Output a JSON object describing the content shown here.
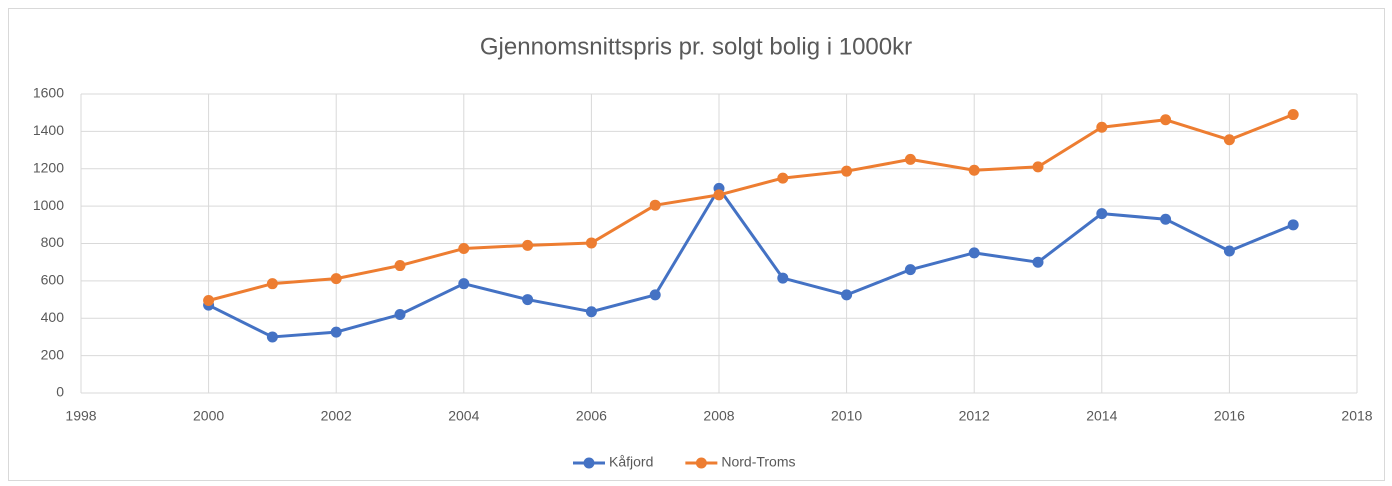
{
  "chart_data": {
    "type": "line",
    "title": "Gjennomsnittspris pr. solgt bolig i 1000kr",
    "x": [
      2000,
      2001,
      2002,
      2003,
      2004,
      2005,
      2006,
      2007,
      2008,
      2009,
      2010,
      2011,
      2012,
      2013,
      2014,
      2015,
      2016,
      2017
    ],
    "series": [
      {
        "name": "Kåfjord",
        "color": "#4472c4",
        "values": [
          470,
          300,
          326,
          420,
          585,
          500,
          435,
          525,
          1095,
          615,
          525,
          660,
          750,
          700,
          960,
          930,
          760,
          900
        ]
      },
      {
        "name": "Nord-Troms",
        "color": "#ed7d31",
        "values": [
          495,
          585,
          612,
          682,
          773,
          790,
          803,
          1005,
          1060,
          1150,
          1187,
          1250,
          1192,
          1210,
          1422,
          1462,
          1355,
          1490
        ]
      }
    ],
    "xlim": [
      1998,
      2018
    ],
    "xticks": [
      1998,
      2000,
      2002,
      2004,
      2006,
      2008,
      2010,
      2012,
      2014,
      2016,
      2018
    ],
    "ylim": [
      0,
      1600
    ],
    "yticks": [
      0,
      200,
      400,
      600,
      800,
      1000,
      1200,
      1400,
      1600
    ],
    "grid": true,
    "legend": "bottom"
  }
}
